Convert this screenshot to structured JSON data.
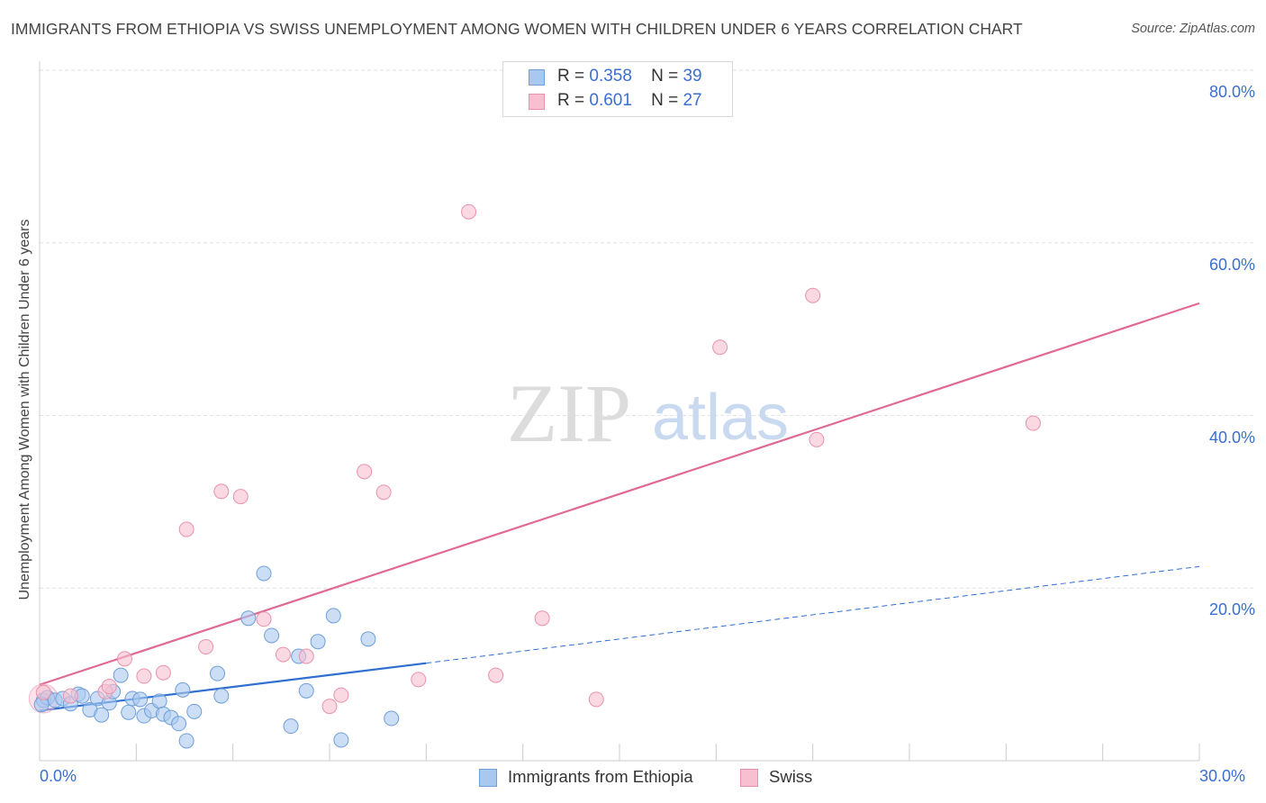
{
  "header": {
    "title": "IMMIGRANTS FROM ETHIOPIA VS SWISS UNEMPLOYMENT AMONG WOMEN WITH CHILDREN UNDER 6 YEARS CORRELATION CHART",
    "source": "Source: ZipAtlas.com"
  },
  "watermark": {
    "zip": "ZIP",
    "atlas": "atlas"
  },
  "legend": {
    "r_label": "R =",
    "n_label": "N =",
    "items": [
      {
        "r": "0.358",
        "n": "39"
      },
      {
        "r": "0.601",
        "n": "27"
      }
    ]
  },
  "colors": {
    "blue_fill": "#a8c8f0",
    "blue_stroke": "#6f9fd8",
    "blue_line": "#2f6fd0",
    "pink_fill": "#f8bfd0",
    "pink_stroke": "#e892ae",
    "pink_line": "#e06a95",
    "grid": "#e2e2e2",
    "tick_text": "#3a6fd0"
  },
  "chart_data": {
    "type": "scatter",
    "title": "IMMIGRANTS FROM ETHIOPIA VS SWISS UNEMPLOYMENT AMONG WOMEN WITH CHILDREN UNDER 6 YEARS CORRELATION CHART",
    "xlabel": "",
    "ylabel": "Unemployment Among Women with Children Under 6 years",
    "xlim": [
      0,
      30
    ],
    "ylim": [
      0,
      80
    ],
    "x_tick_labels": [
      "0.0%",
      "30.0%"
    ],
    "y_tick_labels": [
      "20.0%",
      "40.0%",
      "60.0%",
      "80.0%"
    ],
    "y_ticks": [
      20,
      40,
      60,
      80
    ],
    "series": [
      {
        "name": "Immigrants from Ethiopia",
        "r": 0.358,
        "n": 39,
        "points": [
          [
            0.1,
            7.0
          ],
          [
            0.2,
            7.3
          ],
          [
            0.4,
            7.0
          ],
          [
            0.6,
            7.2
          ],
          [
            0.8,
            6.6
          ],
          [
            1.0,
            7.7
          ],
          [
            1.1,
            7.5
          ],
          [
            1.3,
            5.9
          ],
          [
            1.5,
            7.2
          ],
          [
            1.6,
            5.3
          ],
          [
            1.8,
            6.7
          ],
          [
            1.9,
            8.0
          ],
          [
            2.1,
            9.9
          ],
          [
            2.3,
            5.6
          ],
          [
            2.4,
            7.2
          ],
          [
            2.6,
            7.1
          ],
          [
            2.7,
            5.2
          ],
          [
            2.9,
            5.8
          ],
          [
            3.1,
            6.9
          ],
          [
            3.2,
            5.4
          ],
          [
            3.4,
            5.0
          ],
          [
            3.6,
            4.3
          ],
          [
            3.7,
            8.2
          ],
          [
            3.8,
            2.3
          ],
          [
            4.0,
            5.7
          ],
          [
            4.6,
            10.1
          ],
          [
            4.7,
            7.5
          ],
          [
            5.4,
            16.5
          ],
          [
            5.8,
            21.7
          ],
          [
            6.0,
            14.5
          ],
          [
            6.5,
            4.0
          ],
          [
            6.7,
            12.1
          ],
          [
            6.9,
            8.1
          ],
          [
            7.2,
            13.8
          ],
          [
            7.6,
            16.8
          ],
          [
            7.8,
            2.4
          ],
          [
            8.5,
            14.1
          ],
          [
            9.1,
            4.9
          ],
          [
            0.05,
            6.5
          ]
        ],
        "trend_solid": [
          [
            0,
            5.8
          ],
          [
            10,
            11.3
          ]
        ],
        "trend_dashed": [
          [
            10,
            11.3
          ],
          [
            30,
            22.5
          ]
        ]
      },
      {
        "name": "Swiss",
        "r": 0.601,
        "n": 27,
        "points": [
          [
            0.1,
            7.9
          ],
          [
            0.8,
            7.5
          ],
          [
            1.7,
            8.0
          ],
          [
            1.8,
            8.6
          ],
          [
            2.2,
            11.8
          ],
          [
            2.7,
            9.8
          ],
          [
            3.2,
            10.2
          ],
          [
            3.8,
            26.8
          ],
          [
            4.3,
            13.2
          ],
          [
            4.7,
            31.2
          ],
          [
            5.2,
            30.6
          ],
          [
            5.8,
            16.4
          ],
          [
            6.3,
            12.3
          ],
          [
            6.9,
            12.1
          ],
          [
            7.5,
            6.3
          ],
          [
            7.8,
            7.6
          ],
          [
            8.4,
            33.5
          ],
          [
            8.9,
            31.1
          ],
          [
            9.8,
            9.4
          ],
          [
            11.1,
            63.6
          ],
          [
            11.8,
            9.9
          ],
          [
            13.0,
            16.5
          ],
          [
            14.4,
            7.1
          ],
          [
            17.6,
            47.9
          ],
          [
            20.0,
            53.9
          ],
          [
            20.1,
            37.2
          ],
          [
            25.7,
            39.1
          ]
        ],
        "trend_solid": [
          [
            0,
            8.8
          ],
          [
            30,
            53.0
          ]
        ]
      }
    ],
    "bottom_legend": [
      "Immigrants from Ethiopia",
      "Swiss"
    ]
  }
}
